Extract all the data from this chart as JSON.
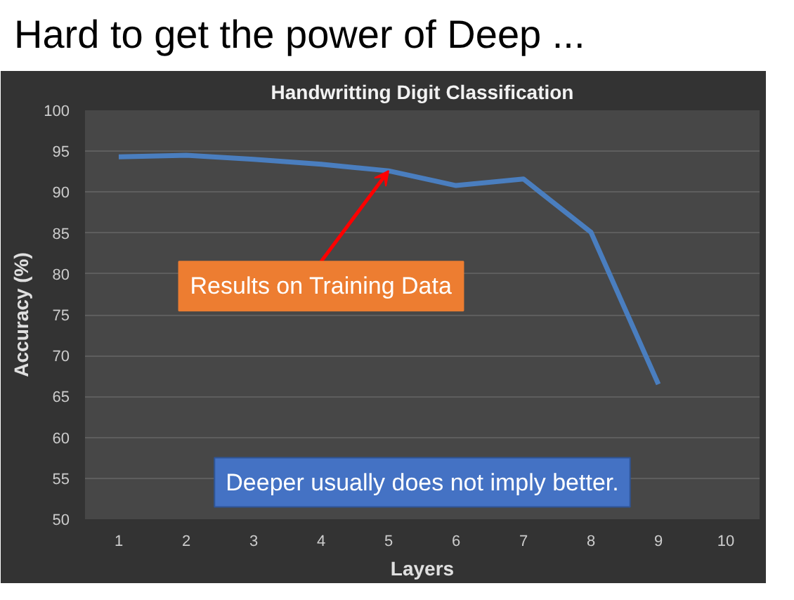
{
  "chart_data": {
    "type": "line",
    "title": "Handwritting Digit Classification",
    "xlabel": "Layers",
    "ylabel": "Accuracy (%)",
    "categories": [
      "1",
      "2",
      "3",
      "4",
      "5",
      "6",
      "7",
      "8",
      "9",
      "10"
    ],
    "series": [
      {
        "color": "#4a7ebf",
        "values": [
          94.3,
          94.5,
          94.0,
          93.4,
          92.6,
          90.8,
          91.6,
          85.1,
          66.5,
          null
        ]
      }
    ],
    "ylim": [
      50,
      100
    ],
    "yticks": [
      50,
      55,
      60,
      65,
      70,
      75,
      80,
      85,
      90,
      95,
      100
    ],
    "grid": "y",
    "marker": "none",
    "line_style": "solid",
    "annotations": [
      "Hard to get the power of Deep ...",
      {
        "text": "Results on Training Data",
        "x": "5",
        "y": 92.6
      },
      "Deeper usually does not imply better."
    ]
  }
}
